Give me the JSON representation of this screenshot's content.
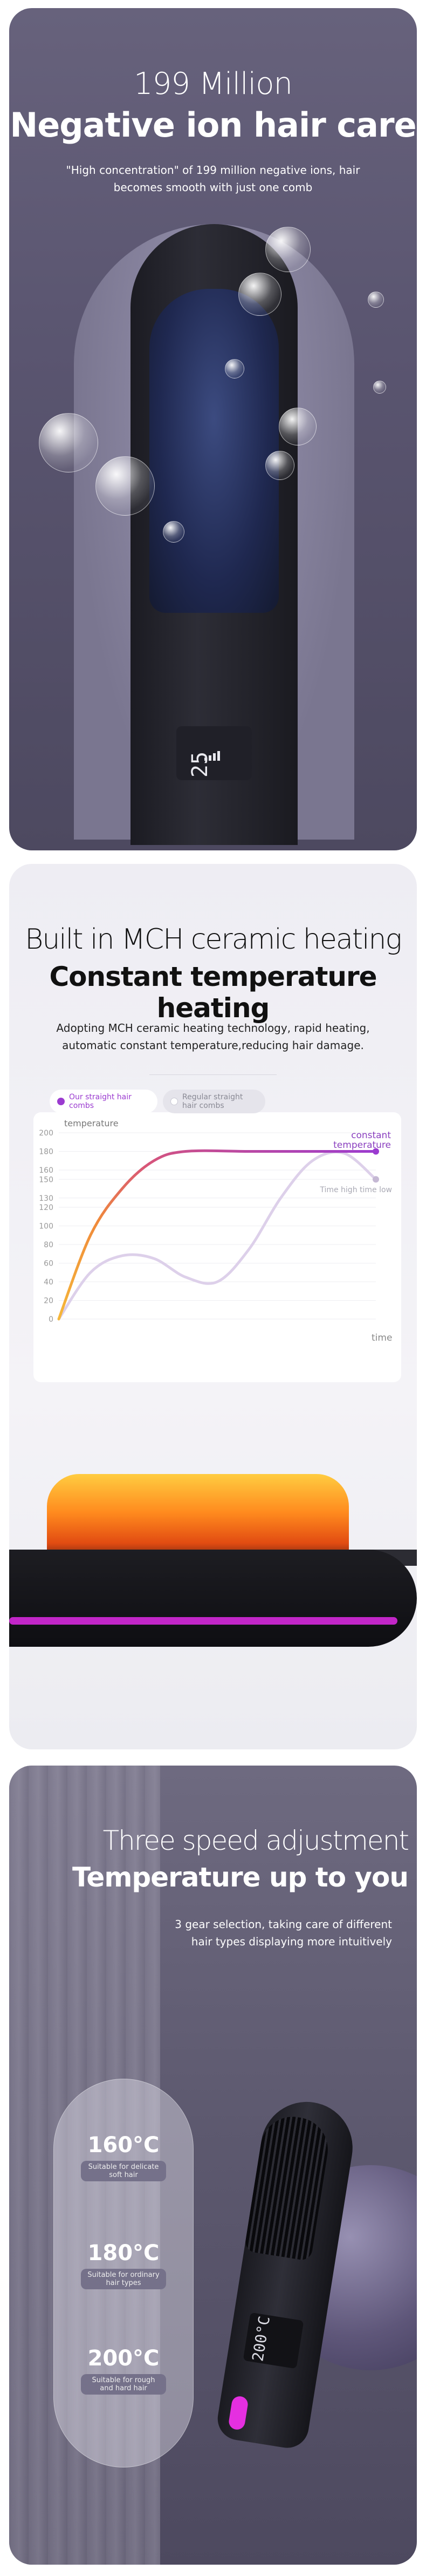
{
  "section1": {
    "title_line1": "199 Million",
    "title_line2": "Negative ion hair care",
    "description": "\"High concentration\" of 199 million negative ions, hair becomes smooth with just one comb",
    "display_digits": "25"
  },
  "section2": {
    "title_line1": "Built in MCH ceramic heating",
    "title_line2": "Constant temperature heating",
    "description": "Adopting MCH ceramic heating technology, rapid heating, automatic constant temperature,reducing hair damage.",
    "legend_ours": "Our straight hair combs",
    "legend_regular": "Regular straight hair combs",
    "chart_data": {
      "type": "line",
      "ylabel": "temperature",
      "xlabel": "time",
      "yticks": [
        0,
        20,
        40,
        60,
        80,
        100,
        120,
        130,
        150,
        160,
        180,
        200
      ],
      "ylim": [
        0,
        200
      ],
      "series": [
        {
          "name": "Our straight hair combs",
          "label": "constant temperature",
          "color": "#9b3bd0",
          "x": [
            0,
            0.1,
            0.2,
            0.3,
            0.4,
            0.6,
            0.8,
            1.0
          ],
          "y": [
            0,
            90,
            140,
            170,
            180,
            180,
            180,
            180
          ]
        },
        {
          "name": "Regular straight hair combs",
          "label": "Time high time low",
          "color": "#d7c7e6",
          "x": [
            0,
            0.1,
            0.2,
            0.3,
            0.4,
            0.5,
            0.6,
            0.7,
            0.8,
            0.9,
            1.0
          ],
          "y": [
            0,
            50,
            68,
            65,
            45,
            40,
            75,
            130,
            170,
            178,
            150
          ]
        }
      ]
    }
  },
  "section3": {
    "title_line1": "Three speed adjustment",
    "title_line2": "Temperature up to you",
    "description": "3 gear selection, taking care of different hair types displaying more intuitively",
    "display_digits": "200°C",
    "levels": [
      {
        "temp": "160°C",
        "desc": "Suitable for delicate soft hair"
      },
      {
        "temp": "180°C",
        "desc": "Suitable for ordinary hair types"
      },
      {
        "temp": "200°C",
        "desc": "Suitable for rough and hard hair"
      }
    ]
  }
}
